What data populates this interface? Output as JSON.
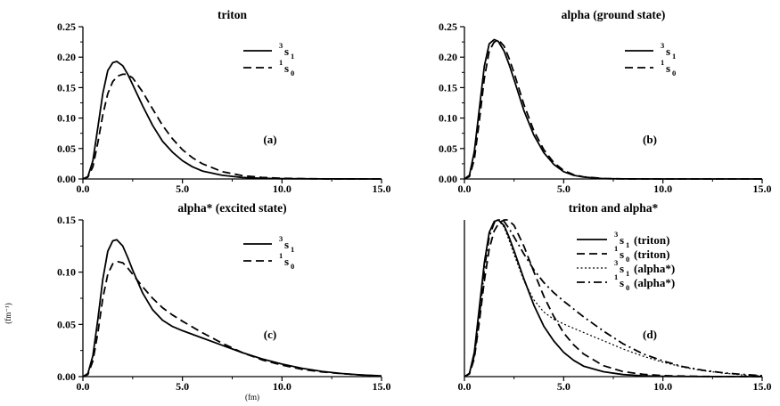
{
  "figure": {
    "ylabel": "(fm⁻¹)",
    "xlabel": "(fm)"
  },
  "chart_data": [
    {
      "type": "line",
      "title": "triton",
      "tag": "(a)",
      "xlim": [
        0,
        15
      ],
      "ylim": [
        0,
        0.25
      ],
      "xticks": [
        "0.0",
        "5.0",
        "10.0",
        "15.0"
      ],
      "yticks": [
        "0.00",
        "0.05",
        "0.10",
        "0.15",
        "0.20",
        "0.25"
      ],
      "legend_position": "top-right",
      "series": [
        {
          "name": "3s1",
          "legend_sup": "3",
          "legend_main": "s",
          "legend_sub": "1",
          "style": "solid",
          "x": [
            0,
            0.25,
            0.5,
            0.75,
            1.0,
            1.25,
            1.5,
            1.7,
            2.0,
            2.25,
            2.5,
            3.0,
            3.5,
            4.0,
            4.5,
            5.0,
            5.5,
            6.0,
            7.0,
            8.0,
            9.0,
            10.0,
            12.0,
            15.0
          ],
          "y": [
            0,
            0.004,
            0.03,
            0.085,
            0.14,
            0.178,
            0.191,
            0.193,
            0.186,
            0.172,
            0.155,
            0.12,
            0.088,
            0.062,
            0.044,
            0.03,
            0.02,
            0.013,
            0.006,
            0.0025,
            0.001,
            0.0004,
            0.0001,
            0
          ]
        },
        {
          "name": "1s0",
          "legend_sup": "1",
          "legend_main": "s",
          "legend_sub": "0",
          "style": "dashed",
          "x": [
            0,
            0.25,
            0.5,
            0.75,
            1.0,
            1.25,
            1.5,
            1.75,
            2.0,
            2.2,
            2.5,
            3.0,
            3.5,
            4.0,
            4.5,
            5.0,
            5.5,
            6.0,
            7.0,
            8.0,
            9.0,
            10.0,
            12.0,
            15.0
          ],
          "y": [
            0,
            0.003,
            0.02,
            0.06,
            0.105,
            0.14,
            0.16,
            0.169,
            0.172,
            0.172,
            0.166,
            0.143,
            0.115,
            0.088,
            0.066,
            0.048,
            0.035,
            0.025,
            0.012,
            0.0055,
            0.0025,
            0.001,
            0.0002,
            0
          ]
        }
      ]
    },
    {
      "type": "line",
      "title": "alpha (ground state)",
      "tag": "(b)",
      "xlim": [
        0,
        15
      ],
      "ylim": [
        0,
        0.25
      ],
      "xticks": [
        "0.0",
        "5.0",
        "10.0",
        "15.0"
      ],
      "yticks": [
        "0.00",
        "0.05",
        "0.10",
        "0.15",
        "0.20",
        "0.25"
      ],
      "legend_position": "top-right",
      "series": [
        {
          "name": "3s1",
          "legend_sup": "3",
          "legend_main": "s",
          "legend_sub": "1",
          "style": "solid",
          "x": [
            0,
            0.25,
            0.5,
            0.75,
            1.0,
            1.25,
            1.5,
            1.7,
            2.0,
            2.25,
            2.5,
            3.0,
            3.5,
            4.0,
            4.5,
            5.0,
            5.5,
            6.0,
            7.0,
            8.0,
            10.0,
            15.0
          ],
          "y": [
            0,
            0.006,
            0.045,
            0.115,
            0.185,
            0.222,
            0.229,
            0.226,
            0.21,
            0.188,
            0.163,
            0.112,
            0.072,
            0.043,
            0.024,
            0.012,
            0.006,
            0.003,
            0.0006,
            0.0001,
            0,
            0
          ]
        },
        {
          "name": "1s0",
          "legend_sup": "1",
          "legend_main": "s",
          "legend_sub": "0",
          "style": "dashed",
          "x": [
            0,
            0.25,
            0.5,
            0.75,
            1.0,
            1.25,
            1.5,
            1.75,
            2.0,
            2.25,
            2.5,
            3.0,
            3.5,
            4.0,
            4.5,
            5.0,
            5.5,
            6.0,
            7.0,
            8.0,
            10.0,
            15.0
          ],
          "y": [
            0,
            0.004,
            0.032,
            0.095,
            0.165,
            0.21,
            0.225,
            0.227,
            0.218,
            0.198,
            0.174,
            0.122,
            0.079,
            0.048,
            0.027,
            0.014,
            0.007,
            0.0035,
            0.0007,
            0.0001,
            0,
            0
          ]
        }
      ]
    },
    {
      "type": "line",
      "title": "alpha* (excited state)",
      "tag": "(c)",
      "xlim": [
        0,
        15
      ],
      "ylim": [
        0,
        0.15
      ],
      "xticks": [
        "0.0",
        "5.0",
        "10.0",
        "15.0"
      ],
      "yticks": [
        "0.00",
        "0.05",
        "0.10",
        "0.15"
      ],
      "legend_position": "top-right",
      "series": [
        {
          "name": "3s1",
          "legend_sup": "3",
          "legend_main": "s",
          "legend_sub": "1",
          "style": "solid",
          "x": [
            0,
            0.25,
            0.5,
            0.75,
            1.0,
            1.25,
            1.5,
            1.7,
            2.0,
            2.25,
            2.5,
            3.0,
            3.5,
            4.0,
            4.5,
            5.0,
            6.0,
            7.0,
            8.0,
            9.0,
            10.0,
            11.0,
            12.0,
            13.0,
            14.0,
            15.0
          ],
          "y": [
            0,
            0.003,
            0.02,
            0.055,
            0.093,
            0.12,
            0.13,
            0.131,
            0.125,
            0.114,
            0.102,
            0.08,
            0.064,
            0.054,
            0.048,
            0.044,
            0.037,
            0.03,
            0.023,
            0.017,
            0.012,
            0.008,
            0.005,
            0.003,
            0.0015,
            0.0007
          ]
        },
        {
          "name": "1s0",
          "legend_sup": "1",
          "legend_main": "s",
          "legend_sub": "0",
          "style": "dashed",
          "x": [
            0,
            0.25,
            0.5,
            0.75,
            1.0,
            1.25,
            1.5,
            1.75,
            2.0,
            2.25,
            2.5,
            3.0,
            3.5,
            4.0,
            4.5,
            5.0,
            6.0,
            7.0,
            8.0,
            9.0,
            10.0,
            11.0,
            12.0,
            13.0,
            14.0,
            15.0
          ],
          "y": [
            0,
            0.002,
            0.015,
            0.042,
            0.075,
            0.098,
            0.108,
            0.11,
            0.109,
            0.104,
            0.098,
            0.086,
            0.075,
            0.066,
            0.059,
            0.053,
            0.042,
            0.032,
            0.023,
            0.016,
            0.011,
            0.007,
            0.0045,
            0.0028,
            0.0015,
            0.0007
          ]
        }
      ]
    },
    {
      "type": "line",
      "title": "triton and alpha*",
      "tag": "(d)",
      "xlim": [
        0,
        15
      ],
      "ylim": [
        0,
        1.0
      ],
      "y_axis": "normalized, no tick labels",
      "xticks": [
        "0.0",
        "5.0",
        "10.0",
        "15.0"
      ],
      "yticks": [],
      "legend_position": "top-right",
      "series": [
        {
          "name": "3s1 (triton)",
          "legend_sup": "3",
          "legend_main": "s",
          "legend_sub": "1",
          "legend_suffix": "(triton)",
          "style": "solid",
          "x": [
            0,
            0.25,
            0.5,
            0.75,
            1.0,
            1.25,
            1.5,
            1.7,
            2.0,
            2.25,
            2.5,
            3.0,
            3.5,
            4.0,
            4.5,
            5.0,
            5.5,
            6.0,
            7.0,
            8.0,
            9.0,
            10.0,
            12.0,
            15.0
          ],
          "y": [
            0,
            0.02,
            0.155,
            0.44,
            0.725,
            0.92,
            0.99,
            1.0,
            0.964,
            0.89,
            0.803,
            0.622,
            0.456,
            0.321,
            0.228,
            0.155,
            0.104,
            0.067,
            0.031,
            0.013,
            0.005,
            0.002,
            0.0005,
            0
          ]
        },
        {
          "name": "1s0 (triton)",
          "legend_sup": "1",
          "legend_main": "s",
          "legend_sub": "0",
          "legend_suffix": "(triton)",
          "style": "dashed",
          "x": [
            0,
            0.25,
            0.5,
            0.75,
            1.0,
            1.25,
            1.5,
            1.75,
            2.0,
            2.2,
            2.5,
            3.0,
            3.5,
            4.0,
            4.5,
            5.0,
            5.5,
            6.0,
            7.0,
            8.0,
            9.0,
            10.0,
            12.0,
            15.0
          ],
          "y": [
            0,
            0.017,
            0.116,
            0.349,
            0.61,
            0.814,
            0.93,
            0.983,
            1.0,
            1.0,
            0.965,
            0.831,
            0.669,
            0.512,
            0.384,
            0.279,
            0.203,
            0.145,
            0.07,
            0.032,
            0.015,
            0.006,
            0.001,
            0
          ]
        },
        {
          "name": "3s1 (alpha*)",
          "legend_sup": "3",
          "legend_main": "s",
          "legend_sub": "1",
          "legend_suffix": "(alpha*)",
          "style": "dotted",
          "x": [
            0,
            0.25,
            0.5,
            0.75,
            1.0,
            1.25,
            1.5,
            1.7,
            2.0,
            2.25,
            2.5,
            3.0,
            3.5,
            4.0,
            4.5,
            5.0,
            6.0,
            7.0,
            8.0,
            9.0,
            10.0,
            11.0,
            12.0,
            13.0,
            14.0,
            15.0
          ],
          "y": [
            0,
            0.023,
            0.153,
            0.42,
            0.71,
            0.916,
            0.992,
            1.0,
            0.954,
            0.87,
            0.779,
            0.611,
            0.489,
            0.412,
            0.366,
            0.336,
            0.282,
            0.229,
            0.176,
            0.13,
            0.092,
            0.061,
            0.038,
            0.023,
            0.011,
            0.005
          ]
        },
        {
          "name": "1s0 (alpha*)",
          "legend_sup": "1",
          "legend_main": "s",
          "legend_sub": "0",
          "legend_suffix": "(alpha*)",
          "style": "dashdot",
          "x": [
            0,
            0.25,
            0.5,
            0.75,
            1.0,
            1.25,
            1.5,
            1.75,
            2.0,
            2.25,
            2.5,
            3.0,
            3.5,
            4.0,
            4.5,
            5.0,
            6.0,
            7.0,
            8.0,
            9.0,
            10.0,
            11.0,
            12.0,
            13.0,
            14.0,
            15.0
          ],
          "y": [
            0,
            0.018,
            0.136,
            0.382,
            0.682,
            0.891,
            0.982,
            1.0,
            0.991,
            0.945,
            0.891,
            0.782,
            0.682,
            0.6,
            0.536,
            0.482,
            0.382,
            0.291,
            0.209,
            0.145,
            0.1,
            0.064,
            0.041,
            0.025,
            0.014,
            0.006
          ]
        }
      ]
    }
  ]
}
